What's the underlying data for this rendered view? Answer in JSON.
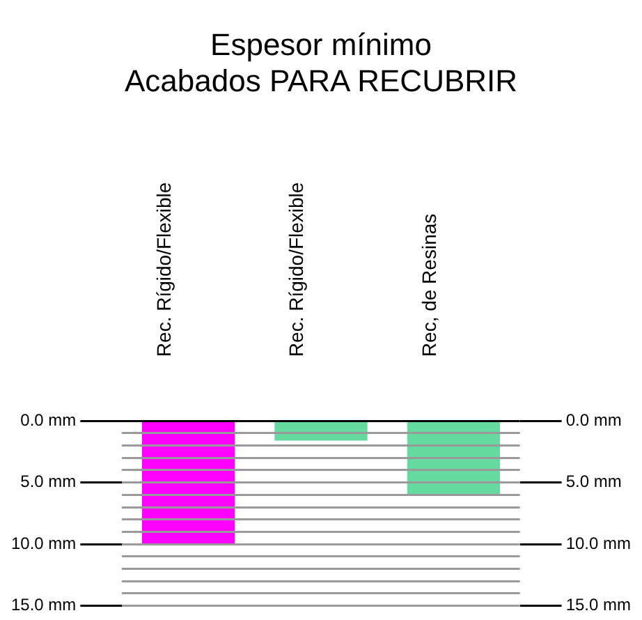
{
  "chart_data": {
    "type": "bar",
    "title": "Espesor mínimo\nAcabados PARA RECUBRIR",
    "categories": [
      "Rec. Rígido/Flexible",
      "Rec. Rígido/Flexible",
      "Rec, de Resinas"
    ],
    "values": [
      10,
      1.6,
      6
    ],
    "colors": [
      "#ff00ff",
      "#66d9a0",
      "#66d9a0"
    ],
    "ylim": [
      15,
      0
    ],
    "yticks": [
      {
        "value": 0,
        "label": "0.0 mm"
      },
      {
        "value": 1,
        "label": null
      },
      {
        "value": 2,
        "label": null
      },
      {
        "value": 3,
        "label": null
      },
      {
        "value": 4,
        "label": null
      },
      {
        "value": 5,
        "label": "5.0 mm"
      },
      {
        "value": 6,
        "label": null
      },
      {
        "value": 7,
        "label": null
      },
      {
        "value": 8,
        "label": null
      },
      {
        "value": 9,
        "label": null
      },
      {
        "value": 10,
        "label": "10.0 mm"
      },
      {
        "value": 11,
        "label": null
      },
      {
        "value": 12,
        "label": null
      },
      {
        "value": 13,
        "label": null
      },
      {
        "value": 14,
        "label": null
      },
      {
        "value": 15,
        "label": "15.0 mm"
      }
    ],
    "y2lim": [
      15,
      0
    ],
    "y2ticks": [
      {
        "value": 0,
        "label": "0.0 mm"
      },
      {
        "value": 5,
        "label": "5.0 mm"
      },
      {
        "value": 10,
        "label": "10.0 mm"
      },
      {
        "value": 15,
        "label": "15.0 mm"
      }
    ],
    "grid": "y",
    "legend": false
  }
}
